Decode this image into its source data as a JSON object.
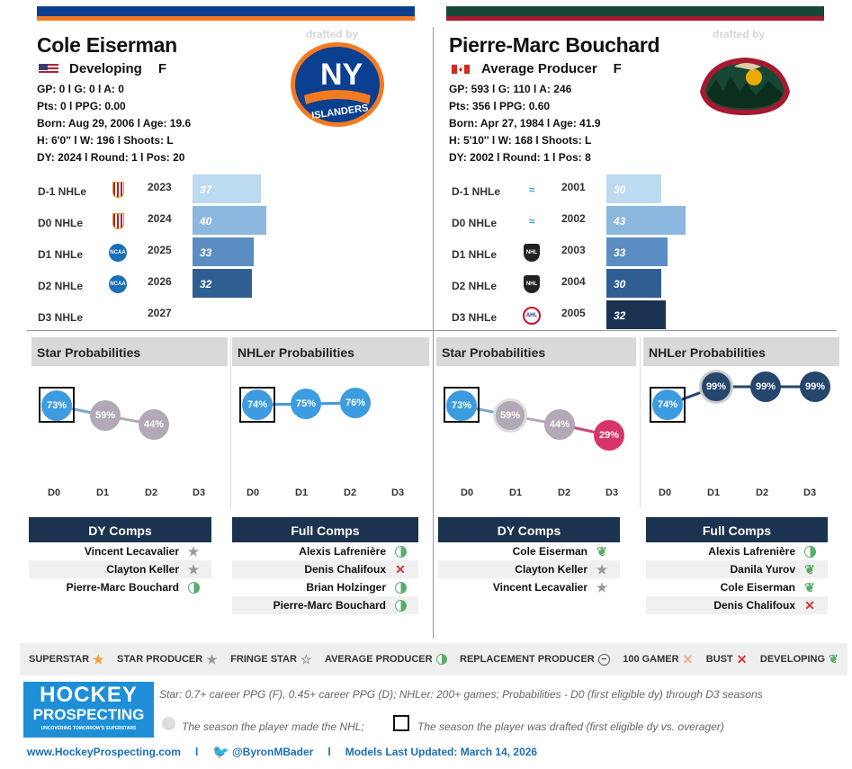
{
  "left": {
    "name": "Cole Eiserman",
    "status": "Developing",
    "position": "F",
    "gp_line": "GP: 0 l G: 0 l A: 0",
    "pts_line": "Pts: 0 l PPG: 0.00",
    "born_line": "Born: Aug 29, 2006 l Age: 19.6",
    "hw_line": "H: 6'0'' l W: 196 l Shoots: L",
    "dy_line": "DY: 2024 l Round: 1 l Pos: 20",
    "drafted_by": "drafted by",
    "team_logo_text": "NY ISLANDERS",
    "team_color": "#0b3f8f",
    "team_accent": "#f47a20",
    "nhle_labels": [
      "D-1 NHLe",
      "D0 NHLe",
      "D1 NHLe",
      "D2 NHLe",
      "D3 NHLe"
    ],
    "nhle_years": [
      "2023",
      "2024",
      "2025",
      "2026",
      "2027"
    ],
    "nhle_values": [
      37,
      40,
      33,
      32,
      null
    ],
    "league_icons": [
      "usntdp-icon",
      "usntdp-icon",
      "ncaa-icon",
      "ncaa-icon",
      ""
    ],
    "star_prob": {
      "title": "Star Probabilities",
      "values": [
        "73%",
        "59%",
        "44%",
        ""
      ]
    },
    "nhler_prob": {
      "title": "NHLer Probabilities",
      "values": [
        "74%",
        "75%",
        "76%",
        ""
      ]
    },
    "dy_comps": {
      "title": "DY Comps",
      "items": [
        {
          "name": "Vincent Lecavalier",
          "icon": "star"
        },
        {
          "name": "Clayton Keller",
          "icon": "star"
        },
        {
          "name": "Pierre-Marc Bouchard",
          "icon": "half"
        }
      ]
    },
    "full_comps": {
      "title": "Full Comps",
      "items": [
        {
          "name": "Alexis Lafrenière",
          "icon": "half"
        },
        {
          "name": "Denis Chalifoux",
          "icon": "bust"
        },
        {
          "name": "Brian Holzinger",
          "icon": "half"
        },
        {
          "name": "Pierre-Marc Bouchard",
          "icon": "half"
        }
      ]
    }
  },
  "right": {
    "name": "Pierre-Marc Bouchard",
    "status": "Average Producer",
    "position": "F",
    "gp_line": "GP: 593 l G: 110 l A: 246",
    "pts_line": "Pts: 356 l PPG: 0.60",
    "born_line": "Born: Apr 27, 1984 l Age: 41.9",
    "hw_line": "H: 5'10'' l W: 168 l Shoots: L",
    "dy_line": "DY: 2002 l Round: 1 l Pos: 8",
    "drafted_by": "drafted by",
    "team_color": "#154734",
    "team_accent": "#a6192e",
    "nhle_labels": [
      "D-1 NHLe",
      "D0 NHLe",
      "D1 NHLe",
      "D2 NHLe",
      "D3 NHLe"
    ],
    "nhle_years": [
      "2001",
      "2002",
      "2003",
      "2004",
      "2005"
    ],
    "nhle_values": [
      30,
      43,
      33,
      30,
      32
    ],
    "league_icons": [
      "qmjhl-icon",
      "qmjhl-icon",
      "nhl-icon",
      "nhl-icon",
      "ahl-icon"
    ],
    "star_prob": {
      "title": "Star Probabilities",
      "values": [
        "73%",
        "59%",
        "44%",
        "29%"
      ]
    },
    "nhler_prob": {
      "title": "NHLer Probabilities",
      "values": [
        "74%",
        "99%",
        "99%",
        "99%"
      ]
    },
    "dy_comps": {
      "title": "DY Comps",
      "items": [
        {
          "name": "Cole Eiserman",
          "icon": "leaf"
        },
        {
          "name": "Clayton Keller",
          "icon": "star"
        },
        {
          "name": "Vincent Lecavalier",
          "icon": "star"
        }
      ]
    },
    "full_comps": {
      "title": "Full Comps",
      "items": [
        {
          "name": "Alexis Lafrenière",
          "icon": "half"
        },
        {
          "name": "Danila Yurov",
          "icon": "leaf"
        },
        {
          "name": "Cole Eiserman",
          "icon": "leaf"
        },
        {
          "name": "Denis Chalifoux",
          "icon": "bust"
        }
      ]
    }
  },
  "x_labels": [
    "D0",
    "D1",
    "D2",
    "D3"
  ],
  "legend": [
    "SUPERSTAR",
    "STAR PRODUCER",
    "FRINGE STAR",
    "AVERAGE PRODUCER",
    "REPLACEMENT PRODUCER",
    "100 GAMER",
    "BUST",
    "DEVELOPING"
  ],
  "brand": {
    "line1": "HOCKEY",
    "line2": "PROSPECTING",
    "tagline": "UNCOVERING TOMORROW'S SUPERSTARS"
  },
  "notes": {
    "line1": "Star: 0.7+ career PPG (F), 0.45+ career PPG (D); NHLer: 200+ games; Probabilities - D0 (first eligible dy) through D3 seasons",
    "line2a": "The season the player made the NHL;",
    "line2b": "The season the player was drafted (first eligible dy vs. overager)"
  },
  "footer": {
    "site": "www.HockeyProspecting.com",
    "sep": "l",
    "twitter": "@ByronMBader",
    "updated": "Models Last Updated: March 14, 2026"
  },
  "colors": {
    "bar1": "#bcdaf0",
    "bar2": "#8cb7de",
    "bar3": "#5a8ec2",
    "bar4": "#2f5f92",
    "bar5": "#1b3350",
    "blue_dot": "#3d9ce0",
    "grey_dot": "#b3a9b6",
    "navy_dot": "#27466e",
    "pink_dot": "#d9336b",
    "header_navy": "#1b3350"
  }
}
